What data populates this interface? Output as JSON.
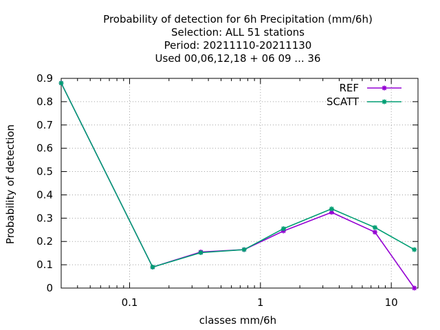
{
  "chart_data": {
    "type": "line",
    "title_lines": [
      "Probability of detection  for 6h Precipitation (mm/6h)",
      "Selection: ALL     51 stations",
      "Period: 20211110-20211130",
      "Used  00,06,12,18 + 06 09 ... 36"
    ],
    "xlabel": "classes mm/6h",
    "ylabel": "Probability of detection",
    "x_scale": "log",
    "xlim": [
      0.03,
      16
    ],
    "ylim": [
      0,
      0.9
    ],
    "x_ticks": [
      {
        "value": 0.1,
        "label": "0.1"
      },
      {
        "value": 1,
        "label": "1"
      },
      {
        "value": 10,
        "label": "10"
      }
    ],
    "y_ticks": [
      {
        "value": 0,
        "label": "0"
      },
      {
        "value": 0.1,
        "label": "0.1"
      },
      {
        "value": 0.2,
        "label": "0.2"
      },
      {
        "value": 0.3,
        "label": "0.3"
      },
      {
        "value": 0.4,
        "label": "0.4"
      },
      {
        "value": 0.5,
        "label": "0.5"
      },
      {
        "value": 0.6,
        "label": "0.6"
      },
      {
        "value": 0.7,
        "label": "0.7"
      },
      {
        "value": 0.8,
        "label": "0.8"
      },
      {
        "value": 0.9,
        "label": "0.9"
      }
    ],
    "grid": true,
    "legend_position": "top-right",
    "series": [
      {
        "name": "REF",
        "color": "#9400d3",
        "x": [
          0.03,
          0.15,
          0.35,
          0.75,
          1.5,
          3.5,
          7.5,
          15
        ],
        "y": [
          0.88,
          0.09,
          0.155,
          0.165,
          0.245,
          0.325,
          0.24,
          0.0
        ]
      },
      {
        "name": "SCATT",
        "color": "#009e73",
        "x": [
          0.03,
          0.15,
          0.35,
          0.75,
          1.5,
          3.5,
          7.5,
          15
        ],
        "y": [
          0.88,
          0.09,
          0.152,
          0.165,
          0.255,
          0.34,
          0.26,
          0.165
        ]
      }
    ]
  }
}
